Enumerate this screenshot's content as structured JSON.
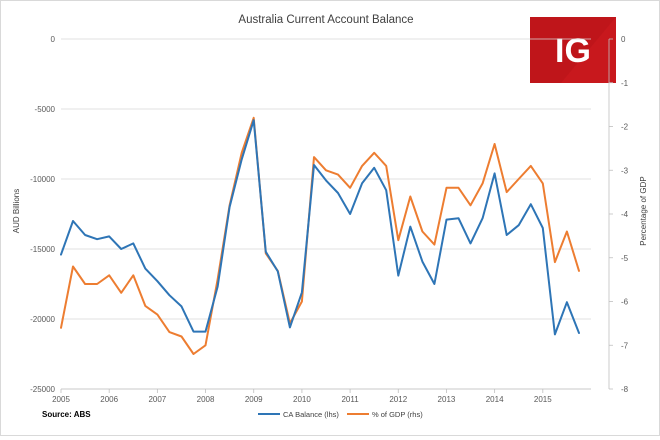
{
  "chart_data": {
    "type": "line",
    "title": "Australia Current Account Balance",
    "ylabel_left": "AUD Billions",
    "ylabel_right": "Percentage of GDP",
    "source": "Source: ABS",
    "logo_text": "IG",
    "colors": {
      "ca_balance": "#2E75B6",
      "pct_gdp": "#ED7D31",
      "logo_bg": "#C8181D"
    },
    "y_left": {
      "min": -25000,
      "max": 0,
      "ticks": [
        "0",
        "-5000",
        "-10000",
        "-15000",
        "-20000",
        "-25000"
      ]
    },
    "y_right": {
      "min": -8,
      "max": 0,
      "ticks": [
        "0",
        "-1",
        "-2",
        "-3",
        "-4",
        "-5",
        "-6",
        "-7",
        "-8"
      ]
    },
    "x_ticks": [
      "2005",
      "2006",
      "2007",
      "2008",
      "2009",
      "2010",
      "2011",
      "2012",
      "2013",
      "2014",
      "2015"
    ],
    "x_start": 2005.0,
    "x_step": 0.25,
    "series": [
      {
        "name": "CA Balance (lhs)",
        "axis": "left",
        "values": [
          -15400,
          -13000,
          -14000,
          -14300,
          -14100,
          -15000,
          -14600,
          -16400,
          -17300,
          -18300,
          -19100,
          -20900,
          -20900,
          -17700,
          -12000,
          -8600,
          -5800,
          -15200,
          -16600,
          -20600,
          -18100,
          -9000,
          -10100,
          -11000,
          -12500,
          -10300,
          -9200,
          -10800,
          -16900,
          -13400,
          -15900,
          -17500,
          -12900,
          -12800,
          -14600,
          -12800,
          -9600,
          -14000,
          -13300,
          -11800,
          -13500,
          -21100,
          -18800,
          -21000
        ]
      },
      {
        "name": "% of GDP (rhs)",
        "axis": "right",
        "values": [
          -6.6,
          -5.2,
          -5.6,
          -5.6,
          -5.4,
          -5.8,
          -5.4,
          -6.1,
          -6.3,
          -6.7,
          -6.8,
          -7.2,
          -7.0,
          -5.5,
          -3.8,
          -2.6,
          -1.8,
          -4.9,
          -5.3,
          -6.5,
          -6.0,
          -2.7,
          -3.0,
          -3.1,
          -3.4,
          -2.9,
          -2.6,
          -2.9,
          -4.6,
          -3.6,
          -4.4,
          -4.7,
          -3.4,
          -3.4,
          -3.8,
          -3.3,
          -2.4,
          -3.5,
          -3.2,
          -2.9,
          -3.3,
          -5.1,
          -4.4,
          -5.3
        ]
      }
    ],
    "legend_position": "bottom"
  }
}
